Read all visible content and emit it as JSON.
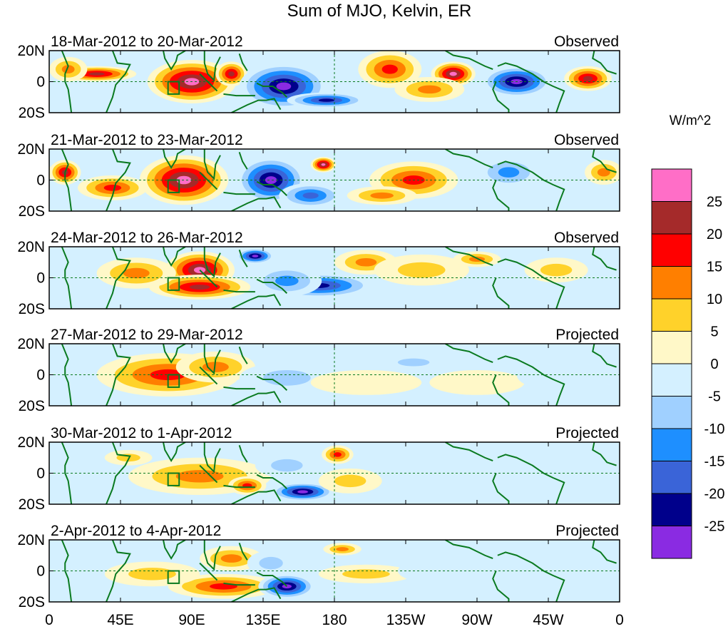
{
  "chart_data": {
    "type": "heatmap",
    "title": "Sum of MJO, Kelvin, ER",
    "units": "W/m^2",
    "y_tick_labels": [
      "20N",
      "0",
      "20S"
    ],
    "x_tick_labels": [
      "0",
      "45E",
      "90E",
      "135E",
      "180",
      "135W",
      "90W",
      "45W",
      "0"
    ],
    "x_range_deg_east": [
      0,
      360
    ],
    "y_range_deg": [
      -20,
      20
    ],
    "colorbar": {
      "tick_labels": [
        "25",
        "20",
        "15",
        "10",
        "5",
        "0",
        "-5",
        "-10",
        "-15",
        "-20",
        "-25"
      ],
      "colors": [
        "#ff6ec7",
        "#a52a2a",
        "#ff0000",
        "#ff7f00",
        "#ffd22a",
        "#fff8c8",
        "#d4f0ff",
        "#a0d0ff",
        "#1e8fff",
        "#3a64d8",
        "#00008b",
        "#8a2be2"
      ]
    },
    "reference_box": {
      "lon": [
        75,
        82
      ],
      "lat": [
        -8,
        0
      ]
    },
    "panels": [
      {
        "period": "18-Mar-2012 to 20-Mar-2012",
        "status": "Observed",
        "anomalies": [
          {
            "lon": 90,
            "lat": 0,
            "rx": 28,
            "ry": 14,
            "v": 30
          },
          {
            "lon": 115,
            "lat": 5,
            "rx": 10,
            "ry": 8,
            "v": 25
          },
          {
            "lon": 30,
            "lat": 5,
            "rx": 25,
            "ry": 5,
            "v": 22
          },
          {
            "lon": 12,
            "lat": 8,
            "rx": 12,
            "ry": 8,
            "v": 14
          },
          {
            "lon": 148,
            "lat": -3,
            "rx": 28,
            "ry": 15,
            "v": -30
          },
          {
            "lon": 175,
            "lat": -12,
            "rx": 25,
            "ry": 5,
            "v": -25
          },
          {
            "lon": 215,
            "lat": 8,
            "rx": 20,
            "ry": 12,
            "v": 20
          },
          {
            "lon": 255,
            "lat": 5,
            "rx": 14,
            "ry": 8,
            "v": 28
          },
          {
            "lon": 240,
            "lat": -5,
            "rx": 22,
            "ry": 8,
            "v": 15
          },
          {
            "lon": 295,
            "lat": 0,
            "rx": 22,
            "ry": 10,
            "v": -28
          },
          {
            "lon": 340,
            "lat": 2,
            "rx": 15,
            "ry": 8,
            "v": 25
          }
        ]
      },
      {
        "period": "21-Mar-2012 to 23-Mar-2012",
        "status": "Observed",
        "anomalies": [
          {
            "lon": 85,
            "lat": 0,
            "rx": 28,
            "ry": 16,
            "v": 30
          },
          {
            "lon": 40,
            "lat": -5,
            "rx": 22,
            "ry": 8,
            "v": 18
          },
          {
            "lon": 10,
            "lat": 5,
            "rx": 10,
            "ry": 8,
            "v": 25
          },
          {
            "lon": 140,
            "lat": 0,
            "rx": 22,
            "ry": 15,
            "v": -28
          },
          {
            "lon": 165,
            "lat": -10,
            "rx": 20,
            "ry": 8,
            "v": -20
          },
          {
            "lon": 173,
            "lat": 10,
            "rx": 8,
            "ry": 5,
            "v": 28
          },
          {
            "lon": 230,
            "lat": 0,
            "rx": 28,
            "ry": 12,
            "v": 20
          },
          {
            "lon": 210,
            "lat": -10,
            "rx": 22,
            "ry": 6,
            "v": 15
          },
          {
            "lon": 290,
            "lat": 5,
            "rx": 20,
            "ry": 10,
            "v": -15
          },
          {
            "lon": 350,
            "lat": 5,
            "rx": 12,
            "ry": 8,
            "v": 15
          }
        ]
      },
      {
        "period": "24-Mar-2012 to 26-Mar-2012",
        "status": "Observed",
        "anomalies": [
          {
            "lon": 95,
            "lat": 5,
            "rx": 22,
            "ry": 12,
            "v": 30
          },
          {
            "lon": 95,
            "lat": -6,
            "rx": 32,
            "ry": 8,
            "v": 22
          },
          {
            "lon": 55,
            "lat": 3,
            "rx": 25,
            "ry": 10,
            "v": 15
          },
          {
            "lon": 130,
            "lat": 14,
            "rx": 12,
            "ry": 5,
            "v": -28
          },
          {
            "lon": 170,
            "lat": -5,
            "rx": 35,
            "ry": 8,
            "v": -25
          },
          {
            "lon": 150,
            "lat": -2,
            "rx": 22,
            "ry": 10,
            "v": -15
          },
          {
            "lon": 200,
            "lat": 10,
            "rx": 20,
            "ry": 8,
            "v": 15
          },
          {
            "lon": 235,
            "lat": 5,
            "rx": 30,
            "ry": 10,
            "v": 10
          },
          {
            "lon": 270,
            "lat": 12,
            "rx": 15,
            "ry": 5,
            "v": 15
          },
          {
            "lon": 320,
            "lat": 5,
            "rx": 20,
            "ry": 8,
            "v": 8
          }
        ]
      },
      {
        "period": "27-Mar-2012 to 29-Mar-2012",
        "status": "Projected",
        "anomalies": [
          {
            "lon": 75,
            "lat": 0,
            "rx": 45,
            "ry": 14,
            "v": 18
          },
          {
            "lon": 105,
            "lat": 5,
            "rx": 25,
            "ry": 10,
            "v": 12
          },
          {
            "lon": 150,
            "lat": -2,
            "rx": 30,
            "ry": 10,
            "v": -10
          },
          {
            "lon": 230,
            "lat": 8,
            "rx": 20,
            "ry": 5,
            "v": -10
          },
          {
            "lon": 200,
            "lat": -5,
            "rx": 35,
            "ry": 8,
            "v": 5
          },
          {
            "lon": 270,
            "lat": -5,
            "rx": 30,
            "ry": 8,
            "v": 5
          },
          {
            "lon": 320,
            "lat": 0,
            "rx": 25,
            "ry": 10,
            "v": -5
          }
        ]
      },
      {
        "period": "30-Mar-2012 to 1-Apr-2012",
        "status": "Projected",
        "anomalies": [
          {
            "lon": 95,
            "lat": -2,
            "rx": 45,
            "ry": 12,
            "v": 15
          },
          {
            "lon": 125,
            "lat": -8,
            "rx": 12,
            "ry": 6,
            "v": 20
          },
          {
            "lon": 50,
            "lat": 10,
            "rx": 15,
            "ry": 5,
            "v": 10
          },
          {
            "lon": 160,
            "lat": -12,
            "rx": 20,
            "ry": 6,
            "v": -30
          },
          {
            "lon": 150,
            "lat": 5,
            "rx": 20,
            "ry": 8,
            "v": -10
          },
          {
            "lon": 182,
            "lat": 12,
            "rx": 10,
            "ry": 6,
            "v": 20
          },
          {
            "lon": 190,
            "lat": -5,
            "rx": 20,
            "ry": 8,
            "v": 10
          },
          {
            "lon": 250,
            "lat": 0,
            "rx": 40,
            "ry": 12,
            "v": -5
          }
        ]
      },
      {
        "period": "2-Apr-2012 to 4-Apr-2012",
        "status": "Projected",
        "anomalies": [
          {
            "lon": 110,
            "lat": -10,
            "rx": 35,
            "ry": 8,
            "v": 20
          },
          {
            "lon": 115,
            "lat": 8,
            "rx": 20,
            "ry": 8,
            "v": 15
          },
          {
            "lon": 65,
            "lat": -2,
            "rx": 30,
            "ry": 8,
            "v": 8
          },
          {
            "lon": 150,
            "lat": -10,
            "rx": 18,
            "ry": 8,
            "v": -28
          },
          {
            "lon": 140,
            "lat": 5,
            "rx": 15,
            "ry": 8,
            "v": -10
          },
          {
            "lon": 200,
            "lat": -2,
            "rx": 30,
            "ry": 6,
            "v": 10
          },
          {
            "lon": 185,
            "lat": 14,
            "rx": 12,
            "ry": 4,
            "v": 15
          },
          {
            "lon": 260,
            "lat": 0,
            "rx": 40,
            "ry": 10,
            "v": -5
          }
        ]
      }
    ]
  }
}
